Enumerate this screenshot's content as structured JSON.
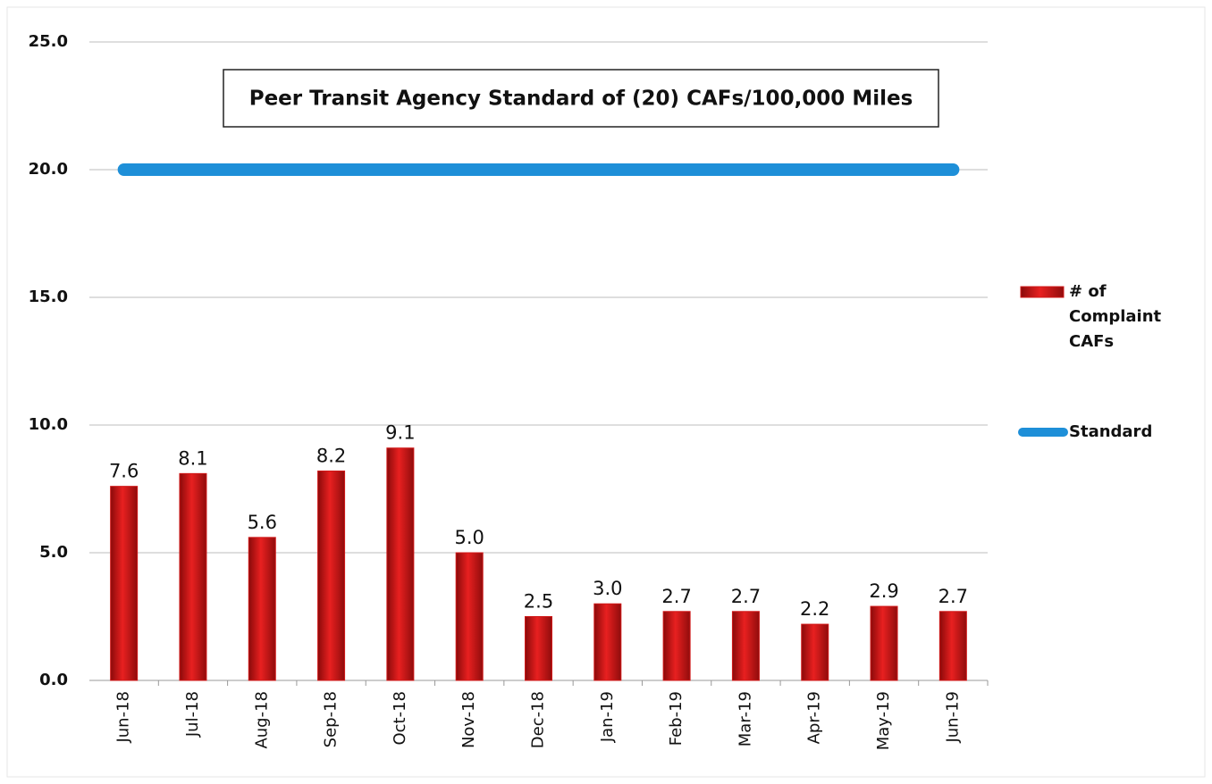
{
  "chart_data": {
    "type": "bar",
    "annotation": "Peer Transit Agency Standard of (20) CAFs/100,000 Miles",
    "categories": [
      "Jun-18",
      "Jul-18",
      "Aug-18",
      "Sep-18",
      "Oct-18",
      "Nov-18",
      "Dec-18",
      "Jan-19",
      "Feb-19",
      "Mar-19",
      "Apr-19",
      "May-19",
      "Jun-19"
    ],
    "series": [
      {
        "name": "# of Complaint CAFs",
        "type": "bar",
        "color": "#d01818",
        "values": [
          7.6,
          8.1,
          5.6,
          8.2,
          9.1,
          5.0,
          2.5,
          3.0,
          2.7,
          2.7,
          2.2,
          2.9,
          2.7
        ],
        "value_labels": [
          "7.6",
          "8.1",
          "5.6",
          "8.2",
          "9.1",
          "5.0",
          "2.5",
          "3.0",
          "2.7",
          "2.7",
          "2.2",
          "2.9",
          "2.7"
        ]
      },
      {
        "name": "Standard",
        "type": "line",
        "color": "#1e8fd8",
        "values": [
          20,
          20,
          20,
          20,
          20,
          20,
          20,
          20,
          20,
          20,
          20,
          20,
          20
        ]
      }
    ],
    "ylim": [
      0,
      25
    ],
    "yticks": [
      {
        "value": 0,
        "label": "0.0"
      },
      {
        "value": 5,
        "label": "5.0"
      },
      {
        "value": 10,
        "label": "10.0"
      },
      {
        "value": 15,
        "label": "15.0"
      },
      {
        "value": 20,
        "label": "20.0"
      },
      {
        "value": 25,
        "label": "25.0"
      }
    ],
    "grid": true,
    "legend": "right"
  }
}
